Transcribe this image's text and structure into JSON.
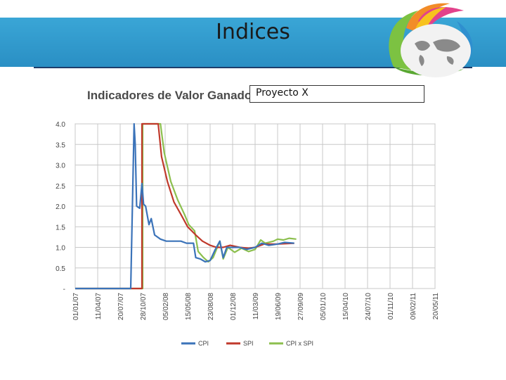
{
  "slide": {
    "title": "Indices",
    "chart_heading": "Indicadores de Valor Ganado",
    "project_name": "Proyecto X"
  },
  "colors": {
    "header_blue": "#2a8fc4",
    "rule": "#1e3e6b",
    "cpi": "#3b73b9",
    "spi": "#c0392b",
    "cpi_x_spi": "#8cbf4e"
  },
  "chart_data": {
    "type": "line",
    "title": "Indicadores de Valor Ganado",
    "x_tick_labels": [
      "01/01/07",
      "11/04/07",
      "20/07/07",
      "28/10/07",
      "05/02/08",
      "15/05/08",
      "23/08/08",
      "01/12/08",
      "11/03/09",
      "19/06/09",
      "27/09/09",
      "05/01/10",
      "15/04/10",
      "24/07/10",
      "01/11/10",
      "09/02/11",
      "20/05/11"
    ],
    "y_tick_labels": [
      "-",
      "0.5",
      "1.0",
      "1.5",
      "2.0",
      "2.5",
      "3.0",
      "3.5",
      "4.0"
    ],
    "ylim": [
      0,
      4.0
    ],
    "grid": true,
    "legend_position": "bottom",
    "series": [
      {
        "name": "CPI",
        "points": [
          [
            "2007-01-01",
            0
          ],
          [
            "2007-09-05",
            0
          ],
          [
            "2007-09-20",
            4.0
          ],
          [
            "2007-09-25",
            3.5
          ],
          [
            "2007-10-01",
            2.0
          ],
          [
            "2007-10-15",
            1.95
          ],
          [
            "2007-10-25",
            2.55
          ],
          [
            "2007-11-01",
            2.05
          ],
          [
            "2007-11-10",
            2.0
          ],
          [
            "2007-11-25",
            1.55
          ],
          [
            "2007-12-05",
            1.7
          ],
          [
            "2007-12-20",
            1.3
          ],
          [
            "2008-01-15",
            1.2
          ],
          [
            "2008-02-10",
            1.15
          ],
          [
            "2008-03-15",
            1.15
          ],
          [
            "2008-04-15",
            1.15
          ],
          [
            "2008-05-10",
            1.1
          ],
          [
            "2008-06-10",
            1.1
          ],
          [
            "2008-06-20",
            0.75
          ],
          [
            "2008-07-10",
            0.72
          ],
          [
            "2008-08-01",
            0.65
          ],
          [
            "2008-08-23",
            0.68
          ],
          [
            "2008-09-15",
            0.95
          ],
          [
            "2008-10-05",
            1.15
          ],
          [
            "2008-10-20",
            0.75
          ],
          [
            "2008-11-05",
            1.0
          ],
          [
            "2008-12-01",
            1.0
          ],
          [
            "2009-01-01",
            1.0
          ],
          [
            "2009-02-01",
            0.95
          ],
          [
            "2009-03-11",
            1.0
          ],
          [
            "2009-04-10",
            1.1
          ],
          [
            "2009-05-10",
            1.05
          ],
          [
            "2009-06-19",
            1.08
          ],
          [
            "2009-07-20",
            1.12
          ],
          [
            "2009-09-01",
            1.1
          ]
        ]
      },
      {
        "name": "SPI",
        "points": [
          [
            "2007-01-01",
            0
          ],
          [
            "2007-10-25",
            0
          ],
          [
            "2007-10-25",
            4.0
          ],
          [
            "2008-01-05",
            4.0
          ],
          [
            "2008-01-20",
            3.2
          ],
          [
            "2008-02-15",
            2.6
          ],
          [
            "2008-03-15",
            2.1
          ],
          [
            "2008-04-15",
            1.8
          ],
          [
            "2008-05-15",
            1.5
          ],
          [
            "2008-06-20",
            1.3
          ],
          [
            "2008-07-20",
            1.15
          ],
          [
            "2008-08-23",
            1.05
          ],
          [
            "2008-09-20",
            1.0
          ],
          [
            "2008-10-20",
            1.0
          ],
          [
            "2008-11-20",
            1.05
          ],
          [
            "2009-01-01",
            1.0
          ],
          [
            "2009-02-10",
            0.98
          ],
          [
            "2009-03-11",
            1.0
          ],
          [
            "2009-04-20",
            1.08
          ],
          [
            "2009-06-19",
            1.08
          ],
          [
            "2009-09-01",
            1.1
          ]
        ]
      },
      {
        "name": "CPI x SPI",
        "points": [
          [
            "2007-01-01",
            0
          ],
          [
            "2007-10-28",
            0
          ],
          [
            "2007-10-28",
            4.0
          ],
          [
            "2008-01-15",
            4.0
          ],
          [
            "2008-02-01",
            3.3
          ],
          [
            "2008-03-01",
            2.6
          ],
          [
            "2008-04-01",
            2.15
          ],
          [
            "2008-05-01",
            1.8
          ],
          [
            "2008-05-20",
            1.55
          ],
          [
            "2008-06-15",
            1.4
          ],
          [
            "2008-07-01",
            0.9
          ],
          [
            "2008-07-25",
            0.75
          ],
          [
            "2008-08-15",
            0.65
          ],
          [
            "2008-09-05",
            0.75
          ],
          [
            "2008-10-05",
            1.15
          ],
          [
            "2008-10-20",
            0.72
          ],
          [
            "2008-11-10",
            1.0
          ],
          [
            "2008-12-10",
            0.88
          ],
          [
            "2009-01-10",
            0.98
          ],
          [
            "2009-02-10",
            0.9
          ],
          [
            "2009-03-11",
            0.95
          ],
          [
            "2009-04-05",
            1.18
          ],
          [
            "2009-04-25",
            1.1
          ],
          [
            "2009-06-01",
            1.15
          ],
          [
            "2009-06-19",
            1.2
          ],
          [
            "2009-07-15",
            1.18
          ],
          [
            "2009-08-10",
            1.22
          ],
          [
            "2009-09-10",
            1.2
          ]
        ]
      }
    ]
  }
}
